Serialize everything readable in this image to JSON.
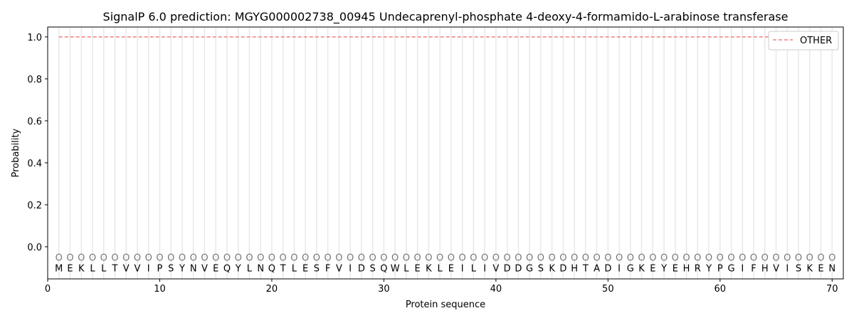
{
  "chart_data": {
    "type": "line",
    "title": "SignalP 6.0 prediction: MGYG000002738_00945 Undecaprenyl-phosphate 4-deoxy-4-formamido-L-arabinose transferase",
    "xlabel": "Protein sequence",
    "ylabel": "Probability",
    "xlim": [
      0,
      71
    ],
    "ylim": [
      -0.153,
      1.047
    ],
    "xticks": [
      0,
      10,
      20,
      30,
      40,
      50,
      60,
      70
    ],
    "yticks": [
      0.0,
      0.2,
      0.4,
      0.6,
      0.8,
      1.0
    ],
    "ytick_labels": [
      "0.0",
      "0.2",
      "0.4",
      "0.6",
      "0.8",
      "1.0"
    ],
    "sequence": [
      "M",
      "E",
      "K",
      "L",
      "L",
      "T",
      "V",
      "V",
      "I",
      "P",
      "S",
      "Y",
      "N",
      "V",
      "E",
      "Q",
      "Y",
      "L",
      "N",
      "Q",
      "T",
      "L",
      "E",
      "S",
      "F",
      "V",
      "I",
      "D",
      "S",
      "Q",
      "W",
      "L",
      "E",
      "K",
      "L",
      "E",
      "I",
      "L",
      "I",
      "V",
      "D",
      "D",
      "G",
      "S",
      "K",
      "D",
      "H",
      "T",
      "A",
      "D",
      "I",
      "G",
      "K",
      "E",
      "Y",
      "E",
      "H",
      "R",
      "Y",
      "P",
      "G",
      "I",
      "F",
      "H",
      "V",
      "I",
      "S",
      "K",
      "E",
      "N"
    ],
    "predicted_label": "O",
    "series": [
      {
        "name": "OTHER",
        "color": "#f08080",
        "style": "dashed",
        "x_range": [
          1,
          70
        ],
        "value": 1.0
      }
    ],
    "legend": {
      "placement": "top-right"
    },
    "grid": "vertical lines at each residue"
  }
}
